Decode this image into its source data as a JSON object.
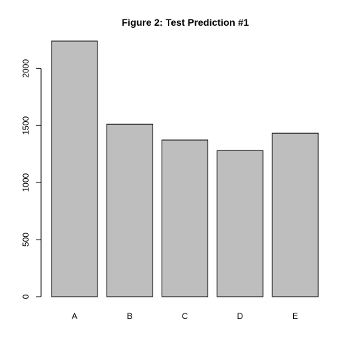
{
  "chart_data": {
    "type": "bar",
    "title": "Figure 2: Test Prediction #1",
    "xlabel": "",
    "ylabel": "",
    "categories": [
      "A",
      "B",
      "C",
      "D",
      "E"
    ],
    "values": [
      2240,
      1512,
      1373,
      1280,
      1433
    ],
    "ylim": [
      0,
      2240
    ],
    "yticks": [
      0,
      500,
      1000,
      1500,
      2000
    ],
    "ytick_labels": [
      "0",
      "500",
      "1000",
      "1500",
      "2000"
    ],
    "grid": false,
    "legend": "none",
    "bar_color": "#bebebe",
    "bar_edge_color": "#000000"
  }
}
